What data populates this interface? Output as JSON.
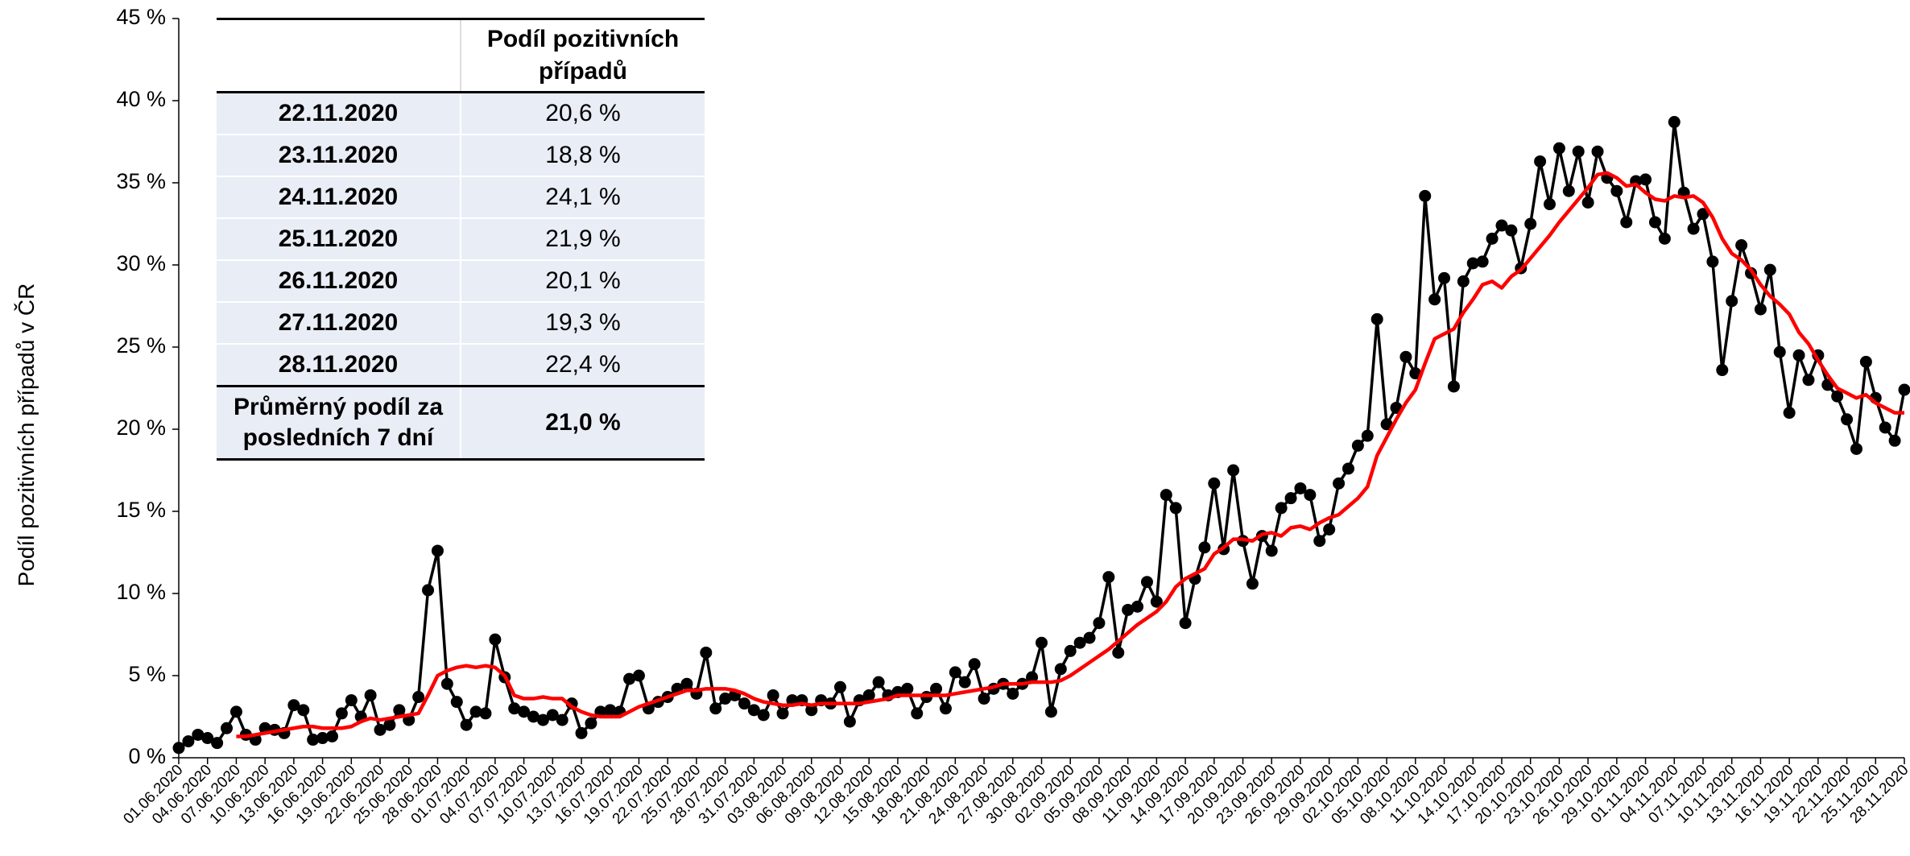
{
  "chart_data": {
    "type": "line",
    "y_label": "Podíl pozitivních případů v ČR",
    "categories": [
      "01.06.2020",
      null,
      null,
      "04.06.2020",
      null,
      null,
      "07.06.2020",
      null,
      null,
      "10.06.2020",
      null,
      null,
      "13.06.2020",
      null,
      null,
      "16.06.2020",
      null,
      null,
      "19.06.2020",
      null,
      null,
      "22.06.2020",
      null,
      null,
      "25.06.2020",
      null,
      null,
      "28.06.2020",
      null,
      null,
      "01.07.2020",
      null,
      null,
      "04.07.2020",
      null,
      null,
      "07.07.2020",
      null,
      null,
      "10.07.2020",
      null,
      null,
      "13.07.2020",
      null,
      null,
      "16.07.2020",
      null,
      null,
      "19.07.2020",
      null,
      null,
      "22.07.2020",
      null,
      null,
      "25.07.2020",
      null,
      null,
      "28.07.2020",
      null,
      null,
      "31.07.2020",
      null,
      null,
      "03.08.2020",
      null,
      null,
      "06.08.2020",
      null,
      null,
      "09.08.2020",
      null,
      null,
      "12.08.2020",
      null,
      null,
      "15.08.2020",
      null,
      null,
      "18.08.2020",
      null,
      null,
      "21.08.2020",
      null,
      null,
      "24.08.2020",
      null,
      null,
      "27.08.2020",
      null,
      null,
      "30.08.2020",
      null,
      null,
      "02.09.2020",
      null,
      null,
      "05.09.2020",
      null,
      null,
      "08.09.2020",
      null,
      null,
      "11.09.2020",
      null,
      null,
      "14.09.2020",
      null,
      null,
      "17.09.2020",
      null,
      null,
      "20.09.2020",
      null,
      null,
      "23.09.2020",
      null,
      null,
      "26.09.2020",
      null,
      null,
      "29.09.2020",
      null,
      null,
      "02.10.2020",
      null,
      null,
      "05.10.2020",
      null,
      null,
      "08.10.2020",
      null,
      null,
      "11.10.2020",
      null,
      null,
      "14.10.2020",
      null,
      null,
      "17.10.2020",
      null,
      null,
      "20.10.2020",
      null,
      null,
      "23.10.2020",
      null,
      null,
      "26.10.2020",
      null,
      null,
      "29.10.2020",
      null,
      null,
      "01.11.2020",
      null,
      null,
      "04.11.2020",
      null,
      null,
      "07.11.2020",
      null,
      null,
      "10.11.2020",
      null,
      null,
      "13.11.2020",
      null,
      null,
      "16.11.2020",
      null,
      null,
      "19.11.2020",
      null,
      null,
      "22.11.2020",
      null,
      null,
      "25.11.2020",
      null,
      null,
      "28.11.2020"
    ],
    "series": [
      {
        "color": "#000000",
        "markers": true,
        "values": [
          0.6,
          1.0,
          1.4,
          1.2,
          0.9,
          1.8,
          2.8,
          1.4,
          1.1,
          1.8,
          1.7,
          1.5,
          3.2,
          2.9,
          1.1,
          1.2,
          1.3,
          2.7,
          3.5,
          2.5,
          3.8,
          1.7,
          2.0,
          2.9,
          2.3,
          3.7,
          10.2,
          12.6,
          4.5,
          3.4,
          2.0,
          2.8,
          2.7,
          7.2,
          4.9,
          3.0,
          2.8,
          2.5,
          2.3,
          2.6,
          2.3,
          3.3,
          1.5,
          2.1,
          2.8,
          2.9,
          2.8,
          4.8,
          5.0,
          3.0,
          3.4,
          3.7,
          4.2,
          4.5,
          3.9,
          6.4,
          3.0,
          3.6,
          3.8,
          3.3,
          2.9,
          2.6,
          3.8,
          2.7,
          3.5,
          3.5,
          2.9,
          3.5,
          3.3,
          4.3,
          2.2,
          3.5,
          3.8,
          4.6,
          3.8,
          4.0,
          4.2,
          2.7,
          3.7,
          4.2,
          3.0,
          5.2,
          4.6,
          5.7,
          3.6,
          4.2,
          4.5,
          3.9,
          4.5,
          4.9,
          7.0,
          2.8,
          5.4,
          6.5,
          7.0,
          7.3,
          8.2,
          11.0,
          6.4,
          9.0,
          9.2,
          10.7,
          9.5,
          16.0,
          15.2,
          8.2,
          10.9,
          12.8,
          16.7,
          12.7,
          17.5,
          13.2,
          10.6,
          13.5,
          12.6,
          15.2,
          15.8,
          16.4,
          16.0,
          13.2,
          13.9,
          16.7,
          17.6,
          19.0,
          19.6,
          26.7,
          20.3,
          21.3,
          24.4,
          23.4,
          34.2,
          27.9,
          29.2,
          22.6,
          29.0,
          30.1,
          30.2,
          31.6,
          32.4,
          32.1,
          29.8,
          32.5,
          36.3,
          33.7,
          37.1,
          34.5,
          36.9,
          33.8,
          36.9,
          35.3,
          34.5,
          32.6,
          35.1,
          35.2,
          32.6,
          31.6,
          38.7,
          34.4,
          32.2,
          33.1,
          30.2,
          23.6,
          27.8,
          31.2,
          29.5,
          27.3,
          29.7,
          24.7,
          21.0,
          24.5,
          23.0,
          24.5,
          22.7,
          22.0,
          20.6,
          18.8,
          24.1,
          21.9,
          20.1,
          19.3,
          22.4
        ]
      },
      {
        "color": "#ff0000",
        "markers": false,
        "values": [
          null,
          null,
          null,
          null,
          null,
          null,
          1.3,
          1.3,
          1.4,
          1.5,
          1.6,
          1.7,
          1.8,
          1.9,
          1.9,
          1.8,
          1.8,
          1.8,
          1.9,
          2.2,
          2.4,
          2.3,
          2.4,
          2.5,
          2.6,
          2.7,
          3.8,
          5.0,
          5.3,
          5.5,
          5.6,
          5.5,
          5.6,
          5.5,
          5.0,
          3.8,
          3.6,
          3.6,
          3.7,
          3.6,
          3.6,
          3.1,
          2.8,
          2.6,
          2.5,
          2.5,
          2.5,
          2.8,
          3.1,
          3.3,
          3.5,
          3.7,
          3.9,
          4.1,
          4.1,
          4.2,
          4.2,
          4.2,
          4.1,
          3.9,
          3.6,
          3.4,
          3.3,
          3.2,
          3.2,
          3.3,
          3.2,
          3.3,
          3.3,
          3.3,
          3.3,
          3.3,
          3.4,
          3.5,
          3.6,
          3.8,
          3.8,
          3.8,
          3.8,
          3.8,
          3.8,
          3.9,
          4.0,
          4.1,
          4.2,
          4.3,
          4.5,
          4.5,
          4.5,
          4.6,
          4.6,
          4.6,
          4.7,
          5.0,
          5.4,
          5.8,
          6.2,
          6.6,
          7.1,
          7.6,
          8.1,
          8.5,
          8.9,
          9.5,
          10.4,
          10.9,
          11.2,
          11.5,
          12.4,
          12.8,
          13.3,
          13.3,
          13.2,
          13.6,
          13.7,
          13.5,
          14.0,
          14.1,
          13.9,
          14.3,
          14.6,
          14.8,
          15.3,
          15.8,
          16.5,
          18.4,
          19.5,
          20.6,
          21.6,
          22.4,
          24.0,
          25.5,
          25.8,
          26.1,
          27.1,
          27.9,
          28.8,
          29.0,
          28.6,
          29.3,
          29.7,
          30.4,
          31.1,
          31.8,
          32.6,
          33.3,
          34.0,
          34.7,
          35.5,
          35.6,
          35.3,
          34.8,
          34.9,
          34.4,
          34.0,
          33.9,
          34.2,
          34.1,
          34.2,
          33.8,
          32.9,
          31.6,
          30.7,
          30.3,
          29.7,
          28.8,
          28.1,
          27.6,
          27.0,
          25.9,
          25.2,
          24.2,
          23.3,
          22.5,
          22.2,
          21.9,
          22.1,
          21.6,
          21.3,
          21.0,
          21.0
        ]
      }
    ],
    "ylim": [
      0,
      45
    ],
    "yticks": [
      {
        "value": 0,
        "label": "0 %"
      },
      {
        "value": 5,
        "label": "5 %"
      },
      {
        "value": 10,
        "label": "10 %"
      },
      {
        "value": 15,
        "label": "15 %"
      },
      {
        "value": 20,
        "label": "20 %"
      },
      {
        "value": 25,
        "label": "25 %"
      },
      {
        "value": 30,
        "label": "30 %"
      },
      {
        "value": 35,
        "label": "35 %"
      },
      {
        "value": 40,
        "label": "40 %"
      },
      {
        "value": 45,
        "label": "45 %"
      }
    ],
    "grid": false
  },
  "table": {
    "header": "Podíl pozitivních případů",
    "rows": [
      [
        "22.11.2020",
        "20,6 %"
      ],
      [
        "23.11.2020",
        "18,8 %"
      ],
      [
        "24.11.2020",
        "24,1 %"
      ],
      [
        "25.11.2020",
        "21,9 %"
      ],
      [
        "26.11.2020",
        "20,1 %"
      ],
      [
        "27.11.2020",
        "19,3 %"
      ],
      [
        "28.11.2020",
        "22,4 %"
      ]
    ],
    "footer": [
      "Průměrný podíl za posledních 7 dní",
      "21,0 %"
    ]
  }
}
